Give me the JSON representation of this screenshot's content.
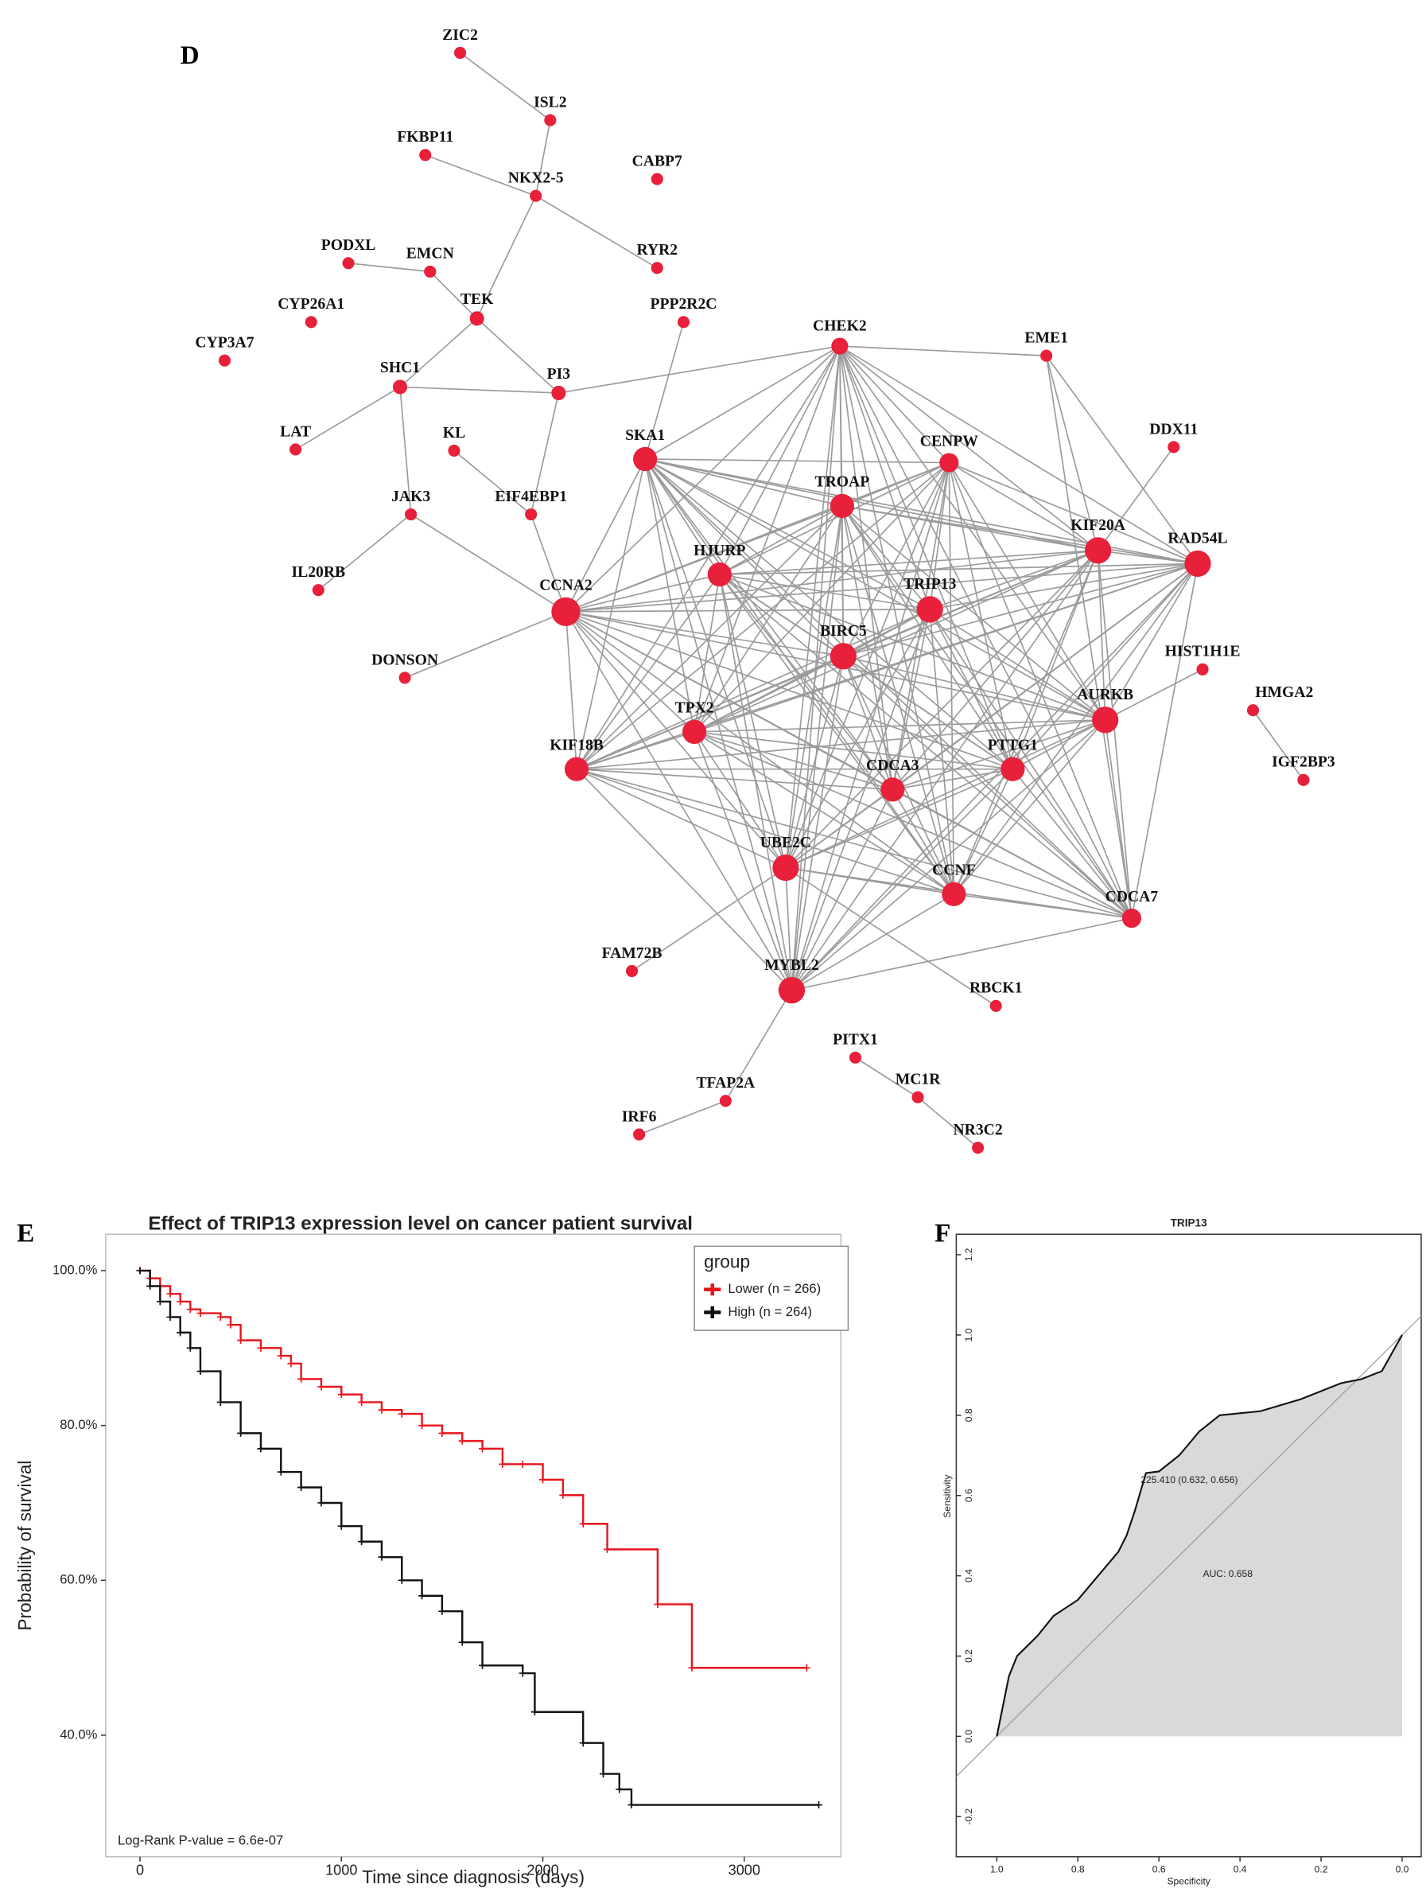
{
  "network": {
    "label": "D",
    "nodes": [
      "ZIC2",
      "ISL2",
      "FKBP11",
      "CABP7",
      "NKX2-5",
      "PODXL",
      "EMCN",
      "RYR2",
      "TEK",
      "CYP26A1",
      "PPP2R2C",
      "CYP3A7",
      "CHEK2",
      "EME1",
      "SHC1",
      "PI3",
      "LAT",
      "KL",
      "DDX11",
      "SKA1",
      "CENPW",
      "TROAP",
      "JAK3",
      "EIF4EBP1",
      "KIF20A",
      "RAD54L",
      "HJURP",
      "IL20RB",
      "CCNA2",
      "TRIP13",
      "BIRC5",
      "HIST1H1E",
      "DONSON",
      "HMGA2",
      "AURKB",
      "TPX2",
      "KIF18B",
      "PTTG1",
      "CDCA3",
      "IGF2BP3",
      "UBE2C",
      "CCNF",
      "CDCA7",
      "FAM72B",
      "MYBL2",
      "RBCK1",
      "PITX1",
      "MC1R",
      "TFAP2A",
      "IRF6",
      "NR3C2"
    ],
    "color": "#e8203a"
  },
  "chart_data": [
    {
      "label": "E",
      "type": "line",
      "step": true,
      "title": "Effect of TRIP13 expression level on cancer patient survival",
      "x_label": "Time since diagnosis (days)",
      "y_label": "Probability of survival",
      "annotation": "Log-Rank P-value = 6.6e-07",
      "legend_title": "group",
      "legend": "top-right",
      "xlim": [
        -170,
        3480
      ],
      "xticks": [
        0,
        1000,
        2000,
        3000
      ],
      "ylim": [
        24.3,
        104.7
      ],
      "yticks": [
        {
          "value": 40,
          "label": "40.0%"
        },
        {
          "value": 60,
          "label": "60.0%"
        },
        {
          "value": 80,
          "label": "80.0%"
        },
        {
          "value": 100,
          "label": "100.0%"
        }
      ],
      "series": [
        {
          "name": "Lower (n = 266)",
          "color": "#e8141c",
          "x": [
            0,
            50,
            100,
            150,
            200,
            250,
            300,
            400,
            450,
            500,
            600,
            700,
            750,
            800,
            900,
            1000,
            1100,
            1200,
            1300,
            1400,
            1500,
            1600,
            1700,
            1800,
            1900,
            2000,
            2100,
            2200,
            2320,
            2570,
            2740,
            3310
          ],
          "values": [
            100,
            99,
            98,
            97,
            96,
            95,
            94.5,
            94,
            93,
            91,
            90,
            89,
            88,
            86,
            85,
            84,
            83,
            82,
            81.5,
            80,
            79,
            78,
            77,
            75,
            75,
            73,
            71,
            67.3,
            64,
            56.9,
            48.7,
            48.7
          ]
        },
        {
          "name": "High (n = 264)",
          "color": "#111111",
          "x": [
            0,
            50,
            100,
            150,
            200,
            250,
            300,
            400,
            500,
            600,
            700,
            800,
            900,
            1000,
            1100,
            1200,
            1300,
            1400,
            1500,
            1600,
            1700,
            1900,
            1960,
            2200,
            2300,
            2380,
            2440,
            3370
          ],
          "values": [
            100,
            98,
            96,
            94,
            92,
            90,
            87,
            83,
            79,
            77,
            74,
            72,
            70,
            67,
            65,
            63,
            60,
            58,
            56,
            52,
            49,
            48,
            43,
            39,
            35,
            33,
            31,
            31
          ]
        }
      ]
    },
    {
      "label": "F",
      "type": "area",
      "title": "TRIP13",
      "x_label": "Specificity",
      "y_label": "Sensitivity",
      "annotations": [
        "225.410 (0.632, 0.656)",
        "AUC: 0.658"
      ],
      "xlim": [
        1.1,
        -0.047
      ],
      "ylim": [
        -0.3,
        1.251
      ],
      "xticks": [
        {
          "value": 1,
          "label": "1.0"
        },
        {
          "value": 0.8,
          "label": "0.8"
        },
        {
          "value": 0.6,
          "label": "0.6"
        },
        {
          "value": 0.4,
          "label": "0.4"
        },
        {
          "value": 0.2,
          "label": "0.2"
        },
        {
          "value": 0,
          "label": "0.0"
        }
      ],
      "yticks": [
        {
          "value": -0.2,
          "label": "-0.2"
        },
        {
          "value": 0,
          "label": "0.0"
        },
        {
          "value": 0.2,
          "label": "0.2"
        },
        {
          "value": 0.4,
          "label": "0.4"
        },
        {
          "value": 0.6,
          "label": "0.6"
        },
        {
          "value": 0.8,
          "label": "0.8"
        },
        {
          "value": 1,
          "label": "1.0"
        },
        {
          "value": 1.2,
          "label": "1.2"
        }
      ],
      "color": "#d9d9d9",
      "x": [
        1,
        0.99,
        0.98,
        0.97,
        0.95,
        0.9,
        0.86,
        0.8,
        0.75,
        0.7,
        0.68,
        0.66,
        0.632,
        0.6,
        0.55,
        0.5,
        0.45,
        0.35,
        0.25,
        0.15,
        0.1,
        0.05,
        0
      ],
      "values": [
        0,
        0.05,
        0.1,
        0.15,
        0.2,
        0.25,
        0.3,
        0.34,
        0.4,
        0.46,
        0.5,
        0.56,
        0.656,
        0.66,
        0.7,
        0.76,
        0.8,
        0.81,
        0.84,
        0.88,
        0.89,
        0.91,
        1
      ]
    }
  ]
}
